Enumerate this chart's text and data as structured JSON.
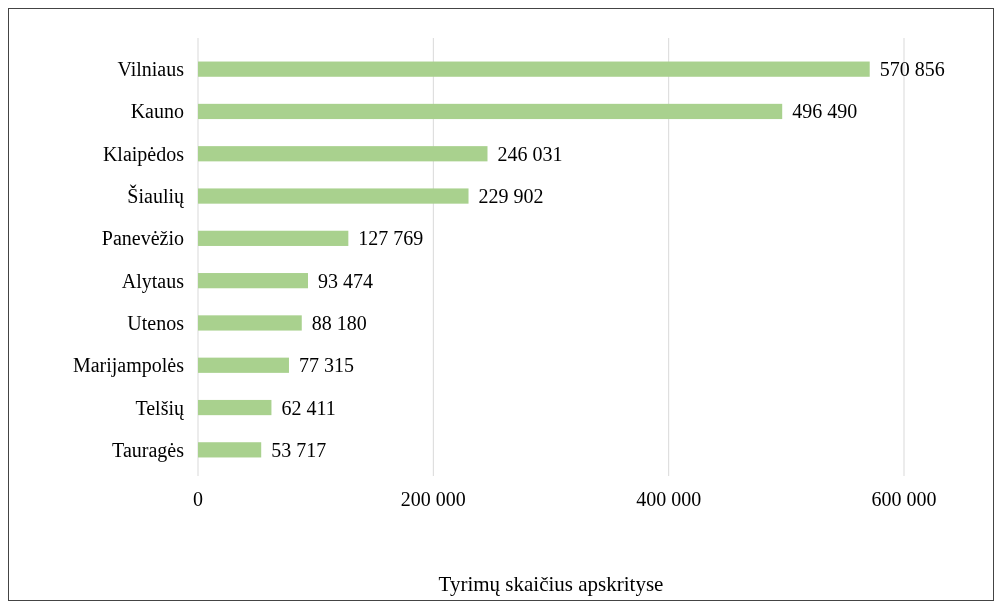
{
  "chart_data": {
    "type": "bar",
    "orientation": "horizontal",
    "xlabel": "Tyrimų skaičius apskrityse",
    "categories": [
      "Vilniaus",
      "Kauno",
      "Klaipėdos",
      "Šiaulių",
      "Panevėžio",
      "Alytaus",
      "Utenos",
      "Marijampolės",
      "Telšių",
      "Tauragės"
    ],
    "values": [
      570856,
      496490,
      246031,
      229902,
      127769,
      93474,
      88180,
      77315,
      62411,
      53717
    ],
    "value_labels": [
      "570 856",
      "496 490",
      "246 031",
      "229 902",
      "127 769",
      "93 474",
      "88 180",
      "77 315",
      "62 411",
      "53 717"
    ],
    "color": "#a9d18e",
    "xlim": [
      0,
      600000
    ],
    "xticks": [
      0,
      {
        "value": 200000,
        "label": "200 000"
      },
      {
        "value": 400000,
        "label": "400 000"
      },
      {
        "value": 600000,
        "label": "600 000"
      }
    ],
    "grid": "x"
  }
}
